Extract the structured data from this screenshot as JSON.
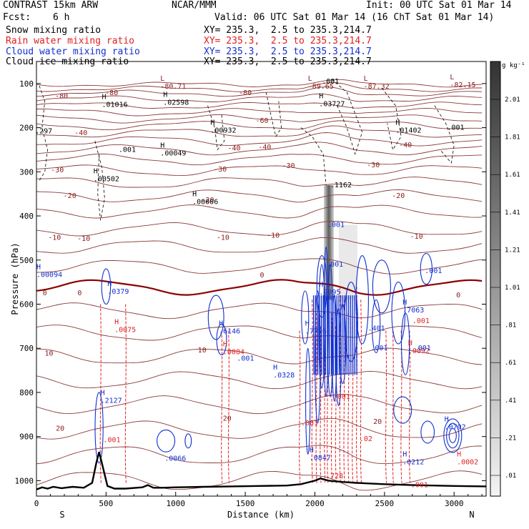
{
  "header": {
    "model": "CONTRAST 15km ARW",
    "org": "NCAR/MMM",
    "init": "Init: 00 UTC Sat 01 Mar 14",
    "fcst_label": "Fcst:",
    "fcst_value": "6 h",
    "valid": "Valid: 06 UTC Sat 01 Mar 14 (16 ChT Sat 01 Mar 14)"
  },
  "fields": [
    {
      "label": "Snow mixing ratio",
      "xy": "XY= 235.3,  2.5 to 235.3,214.7",
      "color": "#000000"
    },
    {
      "label": "Rain water mixing ratio",
      "xy": "XY= 235.3,  2.5 to 235.3,214.7",
      "color": "#e02020"
    },
    {
      "label": "Cloud water mixing ratio",
      "xy": "XY= 235.3,  2.5 to 235.3,214.7",
      "color": "#1030d0"
    },
    {
      "label": "Cloud ice mixing ratio",
      "xy": "XY= 235.3,  2.5 to 235.3,214.7",
      "color": "#000000"
    }
  ],
  "chart_data": {
    "type": "cross-section contour",
    "xlabel": "Distance (km)",
    "ylabel": "Pressure (hPa)",
    "x_ticks": [
      0,
      500,
      1000,
      1500,
      2000,
      2500,
      3000
    ],
    "xlim": [
      0,
      3230
    ],
    "y_ticks": [
      100,
      200,
      300,
      400,
      500,
      600,
      700,
      800,
      900,
      1000
    ],
    "ylim": [
      50,
      1035
    ],
    "x_end_labels": {
      "left": "S",
      "right": "N"
    },
    "colorbar": {
      "unit": "g kg⁻¹",
      "labels": [
        "2.01",
        "1.81",
        "1.61",
        "1.41",
        "1.21",
        "1.01",
        ".81",
        ".61",
        ".41",
        ".21",
        ".01"
      ],
      "levels": [
        2.01,
        1.81,
        1.61,
        1.41,
        1.21,
        1.01,
        0.81,
        0.61,
        0.41,
        0.21,
        0.01
      ],
      "color_top": "#333333",
      "color_bottom": "#f4f4f4"
    },
    "temperature_isotherms_C": [
      -80,
      -60,
      -40,
      -30,
      -20,
      -10,
      0,
      10,
      20
    ],
    "isotherm_labels": [
      {
        "t": "-80",
        "x": 180,
        "p": 127
      },
      {
        "t": "-80",
        "x": 540,
        "p": 120
      },
      {
        "t": "-80",
        "x": 1500,
        "p": 120
      },
      {
        "t": "-60",
        "x": 1620,
        "p": 183
      },
      {
        "t": "-40",
        "x": 320,
        "p": 210
      },
      {
        "t": "-40",
        "x": 1420,
        "p": 245
      },
      {
        "t": "-40",
        "x": 1640,
        "p": 243
      },
      {
        "t": "-40",
        "x": 2650,
        "p": 238
      },
      {
        "t": "-30",
        "x": 150,
        "p": 295
      },
      {
        "t": "-30",
        "x": 1320,
        "p": 293
      },
      {
        "t": "-30",
        "x": 1810,
        "p": 285
      },
      {
        "t": "-30",
        "x": 2420,
        "p": 283
      },
      {
        "t": "-20",
        "x": 240,
        "p": 353
      },
      {
        "t": "-20",
        "x": 1230,
        "p": 363
      },
      {
        "t": "-20",
        "x": 2600,
        "p": 353
      },
      {
        "t": "-10",
        "x": 130,
        "p": 448
      },
      {
        "t": "-10",
        "x": 340,
        "p": 450
      },
      {
        "t": "-10",
        "x": 1340,
        "p": 448
      },
      {
        "t": "-10",
        "x": 1700,
        "p": 443
      },
      {
        "t": "-10",
        "x": 2730,
        "p": 445
      },
      {
        "t": "0",
        "x": 60,
        "p": 573
      },
      {
        "t": "0",
        "x": 310,
        "p": 573
      },
      {
        "t": "0",
        "x": 1620,
        "p": 533
      },
      {
        "t": "0",
        "x": 3030,
        "p": 578
      },
      {
        "t": "10",
        "x": 90,
        "p": 710
      },
      {
        "t": "10",
        "x": 1190,
        "p": 703
      },
      {
        "t": "20",
        "x": 170,
        "p": 880
      },
      {
        "t": "20",
        "x": 1370,
        "p": 858
      },
      {
        "t": "20",
        "x": 2450,
        "p": 865
      }
    ],
    "max_min_labels": [
      {
        "mark": "L",
        "value": "-80.71",
        "x": 890,
        "p": 108,
        "color": "#8b1a1a"
      },
      {
        "mark": "L",
        "value": "-89.65",
        "x": 1950,
        "p": 108,
        "color": "#8b1a1a"
      },
      {
        "mark": "L",
        "value": "-87.32",
        "x": 2350,
        "p": 108,
        "color": "#8b1a1a"
      },
      {
        "mark": "L",
        "value": "-82.15",
        "x": 2970,
        "p": 105,
        "color": "#8b1a1a"
      },
      {
        "mark": "H",
        "value": ".00094",
        "x": 0,
        "p": 535,
        "color": "#1030d0"
      },
      {
        "mark": "H",
        "value": ".0379",
        "x": 510,
        "p": 573,
        "color": "#1030d0"
      },
      {
        "mark": "H",
        "value": ".0075",
        "x": 560,
        "p": 660,
        "color": "#e02020"
      },
      {
        "mark": "H",
        "value": ".6146",
        "x": 1310,
        "p": 663,
        "color": "#1030d0"
      },
      {
        "mark": "H",
        "value": ".0084",
        "x": 1340,
        "p": 710,
        "color": "#e02020"
      },
      {
        "mark": "H",
        "value": ".0328",
        "x": 1700,
        "p": 763,
        "color": "#1030d0"
      },
      {
        "mark": "H",
        "value": ".7786",
        "x": 1930,
        "p": 663,
        "color": "#1030d0"
      },
      {
        "mark": "H",
        "value": ".9095",
        "x": 2030,
        "p": 575,
        "color": "#1030d0"
      },
      {
        "mark": "H",
        "value": ".7063",
        "x": 2630,
        "p": 615,
        "color": "#1030d0"
      },
      {
        "mark": "H",
        "value": ".2127",
        "x": 460,
        "p": 820,
        "color": "#1030d0"
      },
      {
        "mark": "H",
        "value": ".0847",
        "x": 1960,
        "p": 950,
        "color": "#1030d0"
      },
      {
        "mark": "H",
        "value": ".0212",
        "x": 2630,
        "p": 960,
        "color": "#1030d0"
      },
      {
        "mark": "H",
        "value": ".0792",
        "x": 2930,
        "p": 880,
        "color": "#1030d0"
      },
      {
        "mark": "H",
        "value": ".0092",
        "x": 2670,
        "p": 708,
        "color": "#e02020"
      },
      {
        "mark": "H",
        "value": ".0002",
        "x": 3020,
        "p": 960,
        "color": "#e02020"
      },
      {
        "mark": "H",
        "value": ".01016",
        "x": 470,
        "p": 150,
        "color": "#000000"
      },
      {
        "mark": "H",
        "value": ".02598",
        "x": 910,
        "p": 145,
        "color": "#000000"
      },
      {
        "mark": "H",
        "value": ".03727",
        "x": 2030,
        "p": 148,
        "color": "#000000"
      },
      {
        "mark": "H",
        "value": ".00932",
        "x": 1250,
        "p": 208,
        "color": "#000000"
      },
      {
        "mark": "H",
        "value": ".01402",
        "x": 2580,
        "p": 208,
        "color": "#000000"
      },
      {
        "mark": "H",
        "value": ".00049",
        "x": 890,
        "p": 260,
        "color": "#000000"
      },
      {
        "mark": "H",
        "value": ".00502",
        "x": 410,
        "p": 318,
        "color": "#000000"
      },
      {
        "mark": "H",
        "value": ".00006",
        "x": 1120,
        "p": 370,
        "color": "#000000"
      }
    ],
    "contour_labels": [
      {
        "value": ".297",
        "x": -10,
        "p": 208,
        "color": "#000000"
      },
      {
        "value": ".001",
        "x": 590,
        "p": 250,
        "color": "#000000"
      },
      {
        "value": ".001",
        "x": 2950,
        "p": 200,
        "color": "#000000"
      },
      {
        "value": ".001",
        "x": 2050,
        "p": 95,
        "color": "#000000"
      },
      {
        "value": ".001",
        "x": 2090,
        "p": 420,
        "color": "#1030d0"
      },
      {
        "value": ".001",
        "x": 2080,
        "p": 510,
        "color": "#1030d0"
      },
      {
        "value": ".001",
        "x": 2790,
        "p": 525,
        "color": "#1030d0"
      },
      {
        "value": ".001",
        "x": 1440,
        "p": 723,
        "color": "#1030d0"
      },
      {
        "value": ".001",
        "x": 2710,
        "p": 700,
        "color": "#1030d0"
      },
      {
        "value": ".001",
        "x": 2130,
        "p": 810,
        "color": "#e02020"
      },
      {
        "value": ".001",
        "x": 480,
        "p": 908,
        "color": "#e02020"
      },
      {
        "value": ".001",
        "x": 2700,
        "p": 638,
        "color": "#e02020"
      },
      {
        "value": ".001",
        "x": 1900,
        "p": 870,
        "color": "#e02020"
      },
      {
        "value": ".001",
        "x": 2400,
        "p": 700,
        "color": "#1030d0"
      },
      {
        "value": ".001",
        "x": 2690,
        "p": 1010,
        "color": "#e02020"
      },
      {
        "value": ".401",
        "x": 2380,
        "p": 655,
        "color": "#1030d0"
      },
      {
        "value": ".02",
        "x": 2320,
        "p": 905,
        "color": "#e02020"
      },
      {
        "value": ".728",
        "x": 2080,
        "p": 990,
        "color": "#e02020"
      },
      {
        "value": ".0066",
        "x": 920,
        "p": 950,
        "color": "#1030d0"
      },
      {
        "value": ".1162",
        "x": 2110,
        "p": 330,
        "color": "#000000"
      }
    ],
    "cloud_ice_shading": {
      "x_center_km": 2100,
      "p_top_hPa": 330,
      "p_bottom_hPa": 590,
      "max_g_per_kg": 2.0
    },
    "terrain_profile": {
      "x_km": [
        0,
        40,
        80,
        120,
        180,
        260,
        340,
        400,
        430,
        450,
        470,
        510,
        560,
        640,
        760,
        800,
        840,
        900,
        1000,
        1200,
        1400,
        1600,
        1800,
        1900,
        2000,
        2040,
        2100,
        2200,
        2300,
        2500,
        2700,
        3000,
        3230
      ],
      "p_hPa": [
        1020,
        1015,
        1018,
        1014,
        1017,
        1014,
        1016,
        1005,
        960,
        935,
        960,
        1012,
        1018,
        1018,
        1015,
        1010,
        1016,
        1016,
        1015,
        1014,
        1013,
        1012,
        1011,
        1008,
        1000,
        995,
        1000,
        1003,
        1005,
        1008,
        1010,
        1012,
        1013
      ]
    }
  }
}
